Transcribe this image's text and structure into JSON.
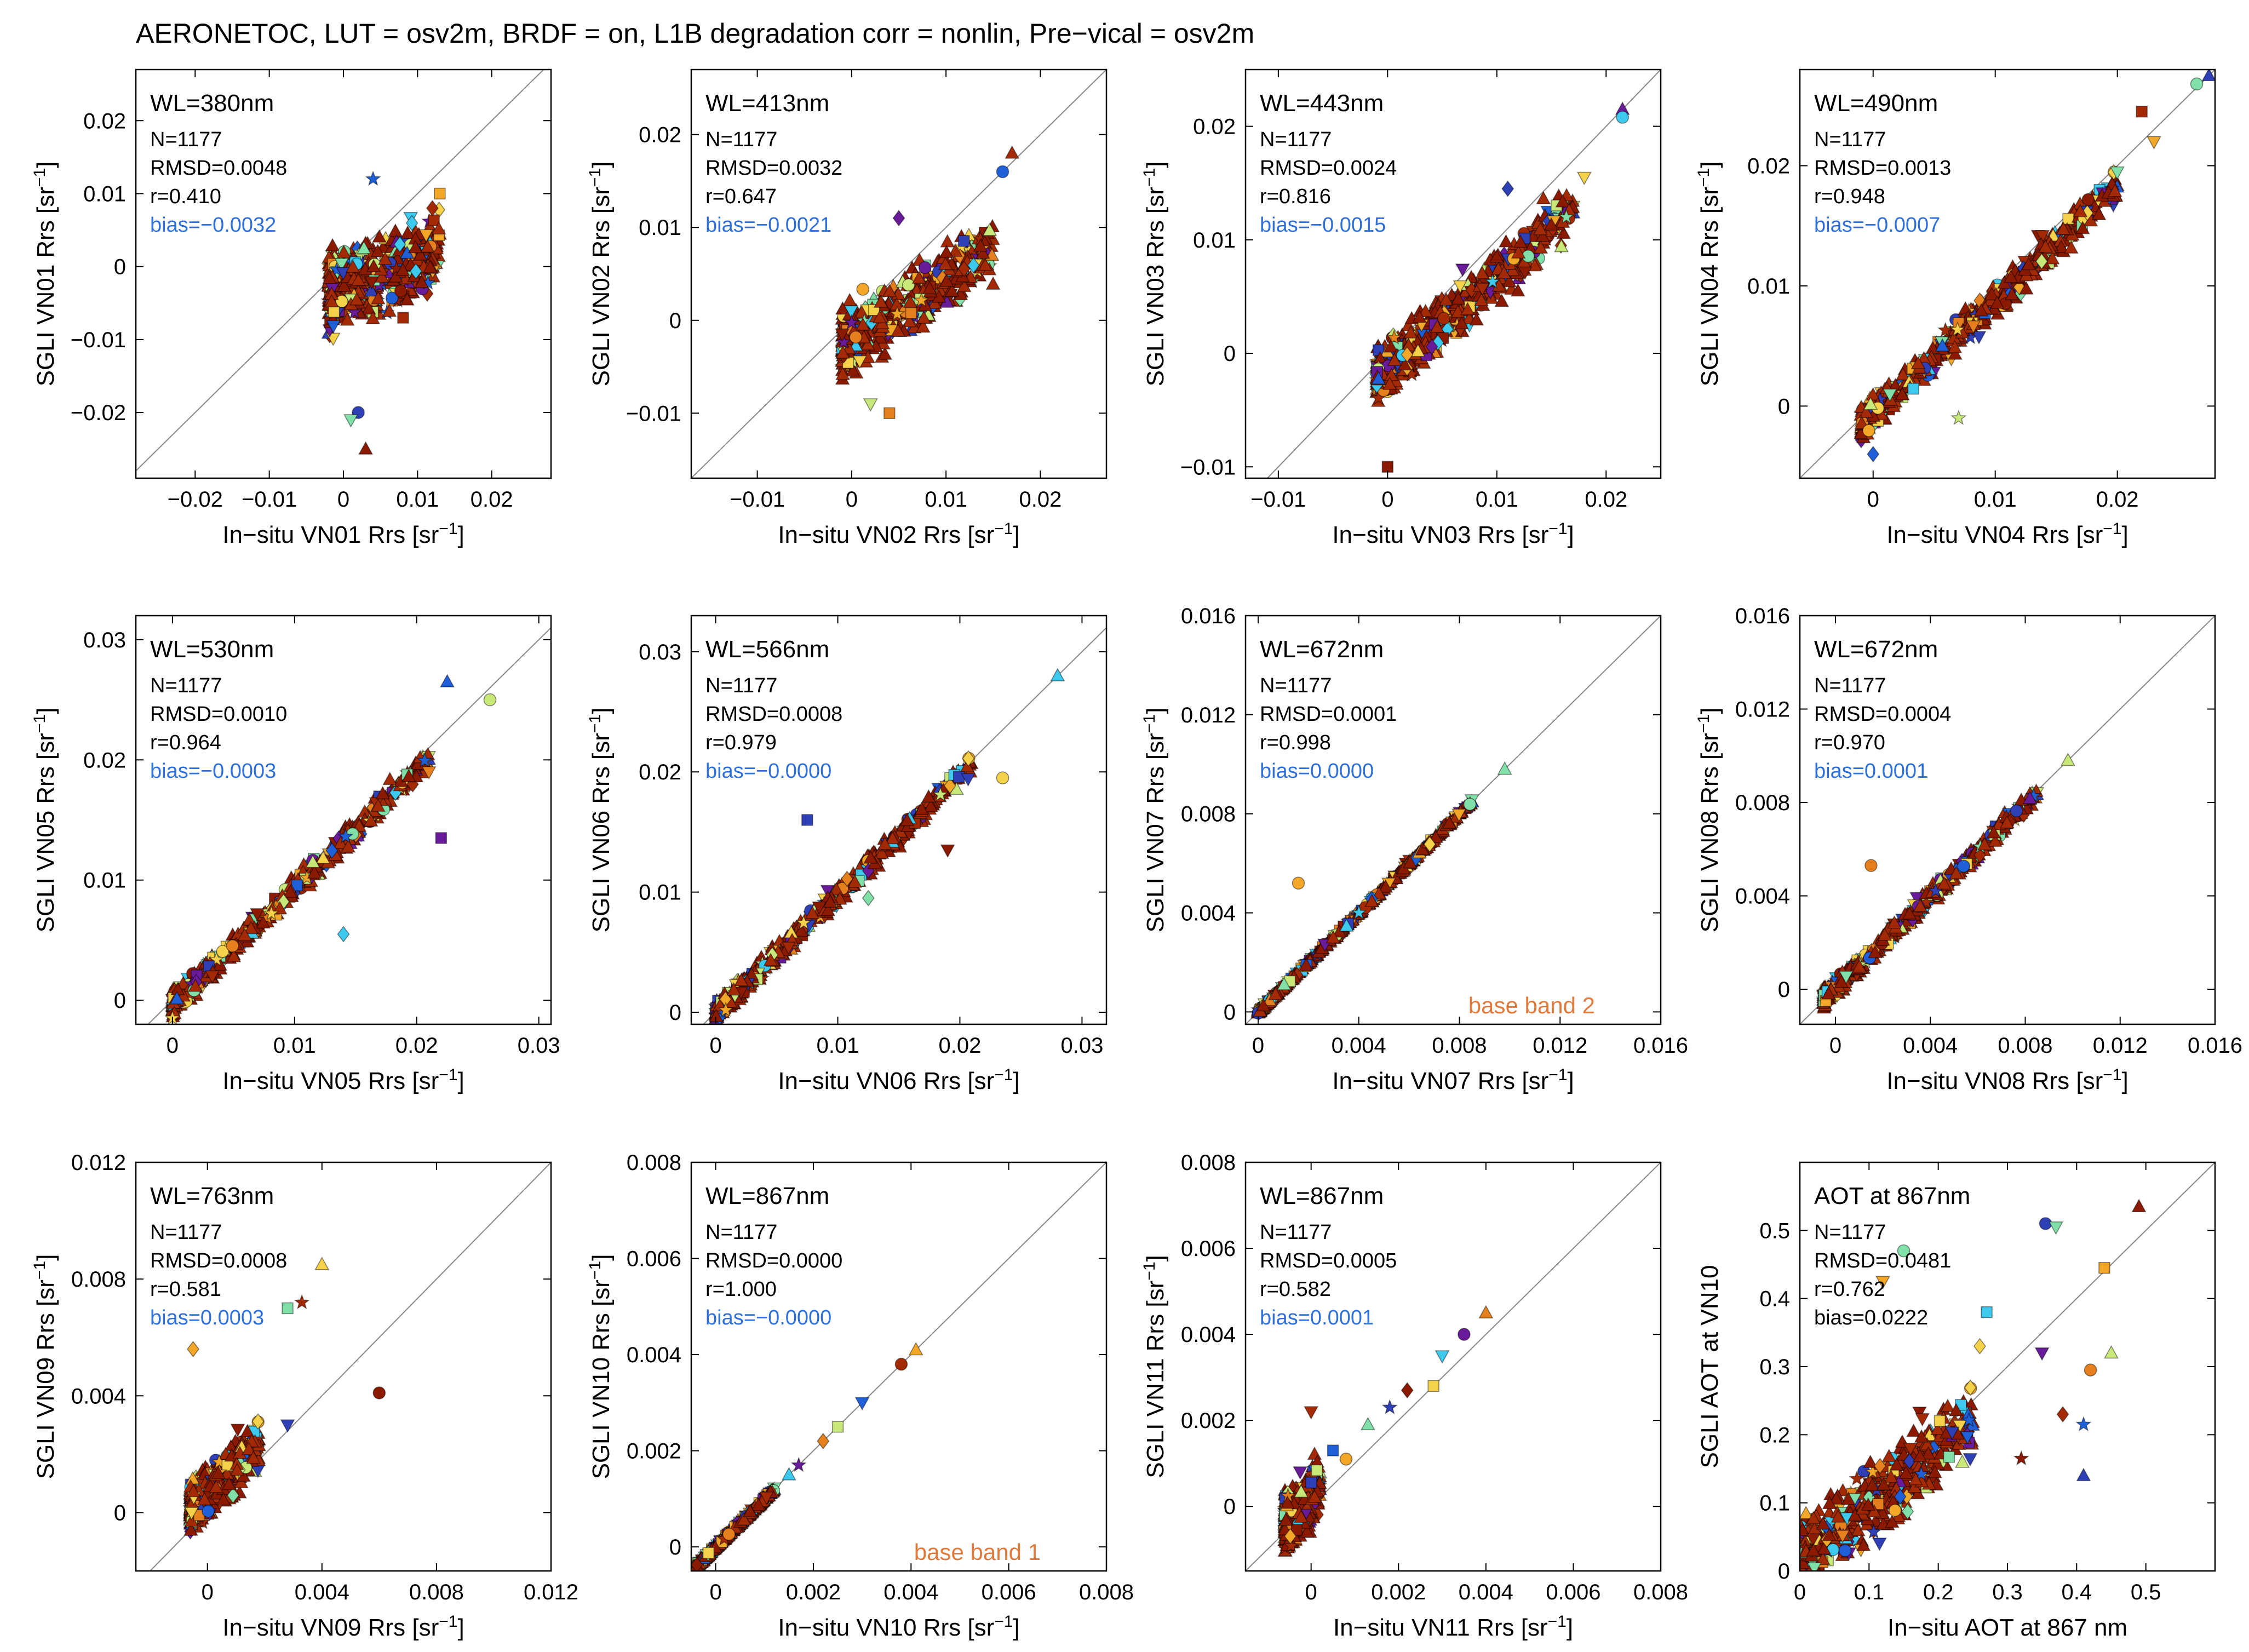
{
  "title": "AERONETOC, LUT = osv2m, BRDF = on, L1B degradation corr = nonlin, Pre−vical = osv2m",
  "colors": {
    "stat_bias": "#2f6fd8",
    "base_band": "#e07a3c",
    "identity_line": "#888888",
    "marker_palette": [
      "#8b1a00",
      "#a32a05",
      "#6a1b9a",
      "#2f3fb5",
      "#1f5fd8",
      "#3ec9ee",
      "#80e0a8",
      "#c8e87a",
      "#f6d24a",
      "#f3a728",
      "#e6801e"
    ]
  },
  "chart_data": [
    {
      "type": "scatter",
      "label": "WL=380nm",
      "xlabel": "In−situ VN01 Rrs [sr⁻¹]",
      "ylabel": "SGLI VN01 Rrs [sr⁻¹]",
      "xlim": [
        -0.028,
        0.028
      ],
      "ylim": [
        -0.029,
        0.027
      ],
      "xticks": [
        -0.02,
        -0.01,
        0,
        0.01,
        0.02
      ],
      "xticklabels": [
        "−0.02",
        "−0.01",
        "0",
        "0.01",
        "0.02"
      ],
      "yticks": [
        -0.02,
        -0.01,
        0,
        0.01,
        0.02
      ],
      "yticklabels": [
        "−0.02",
        "−0.01",
        "0",
        "0.01",
        "0.02"
      ],
      "stats": [
        "N=1177",
        "RMSD=0.0048",
        "r=0.410"
      ],
      "bias": "bias=−0.0032",
      "cluster": {
        "x_range": [
          -0.002,
          0.013
        ],
        "center_y_intercept": -0.003,
        "slope": 0.4,
        "spread": 0.0048
      },
      "points": [
        [
          0.003,
          -0.025
        ],
        [
          0.002,
          -0.02
        ],
        [
          0.001,
          -0.021
        ],
        [
          0.013,
          0.01
        ],
        [
          0.012,
          0.008
        ],
        [
          0.004,
          0.012
        ]
      ]
    },
    {
      "type": "scatter",
      "label": "WL=413nm",
      "xlabel": "In−situ VN02 Rrs [sr⁻¹]",
      "ylabel": "SGLI VN02 Rrs [sr⁻¹]",
      "xlim": [
        -0.017,
        0.027
      ],
      "ylim": [
        -0.017,
        0.027
      ],
      "xticks": [
        -0.01,
        0,
        0.01,
        0.02
      ],
      "xticklabels": [
        "−0.01",
        "0",
        "0.01",
        "0.02"
      ],
      "yticks": [
        -0.01,
        0,
        0.01,
        0.02
      ],
      "yticklabels": [
        "−0.01",
        "0",
        "0.01",
        "0.02"
      ],
      "stats": [
        "N=1177",
        "RMSD=0.0032",
        "r=0.647"
      ],
      "bias": "bias=−0.0021",
      "cluster": {
        "x_range": [
          -0.001,
          0.015
        ],
        "center_y_intercept": -0.002,
        "slope": 0.65,
        "spread": 0.003
      },
      "points": [
        [
          0.017,
          0.018
        ],
        [
          0.016,
          0.016
        ],
        [
          0.002,
          -0.009
        ],
        [
          0.004,
          -0.01
        ],
        [
          0.005,
          0.011
        ]
      ]
    },
    {
      "type": "scatter",
      "label": "WL=443nm",
      "xlabel": "In−situ VN03 Rrs [sr⁻¹]",
      "ylabel": "SGLI VN03 Rrs [sr⁻¹]",
      "xlim": [
        -0.013,
        0.025
      ],
      "ylim": [
        -0.011,
        0.025
      ],
      "xticks": [
        -0.01,
        0,
        0.01,
        0.02
      ],
      "xticklabels": [
        "−0.01",
        "0",
        "0.01",
        "0.02"
      ],
      "yticks": [
        -0.01,
        0,
        0.01,
        0.02
      ],
      "yticklabels": [
        "−0.01",
        "0",
        "0.01",
        "0.02"
      ],
      "stats": [
        "N=1177",
        "RMSD=0.0024",
        "r=0.816"
      ],
      "bias": "bias=−0.0015",
      "cluster": {
        "x_range": [
          -0.001,
          0.017
        ],
        "center_y_intercept": -0.0012,
        "slope": 0.8,
        "spread": 0.0022
      },
      "points": [
        [
          0.0215,
          0.0215
        ],
        [
          0.0215,
          0.0208
        ],
        [
          0.018,
          0.0155
        ],
        [
          0.0,
          -0.01
        ],
        [
          0.011,
          0.0145
        ]
      ]
    },
    {
      "type": "scatter",
      "label": "WL=490nm",
      "xlabel": "In−situ VN04 Rrs [sr⁻¹]",
      "ylabel": "SGLI VN04 Rrs [sr⁻¹]",
      "xlim": [
        -0.006,
        0.028
      ],
      "ylim": [
        -0.006,
        0.028
      ],
      "xticks": [
        0,
        0.01,
        0.02
      ],
      "xticklabels": [
        "0",
        "0.01",
        "0.02"
      ],
      "yticks": [
        0,
        0.01,
        0.02
      ],
      "yticklabels": [
        "0",
        "0.01",
        "0.02"
      ],
      "stats": [
        "N=1177",
        "RMSD=0.0013",
        "r=0.948"
      ],
      "bias": "bias=−0.0007",
      "cluster": {
        "x_range": [
          -0.001,
          0.02
        ],
        "center_y_intercept": -0.0006,
        "slope": 0.95,
        "spread": 0.0013
      },
      "points": [
        [
          0.0275,
          0.0275
        ],
        [
          0.0265,
          0.0268
        ],
        [
          0.023,
          0.022
        ],
        [
          0.022,
          0.0245
        ],
        [
          0.0,
          -0.004
        ],
        [
          0.007,
          -0.001
        ]
      ]
    },
    {
      "type": "scatter",
      "label": "WL=530nm",
      "xlabel": "In−situ VN05 Rrs [sr⁻¹]",
      "ylabel": "SGLI VN05 Rrs [sr⁻¹]",
      "xlim": [
        -0.003,
        0.031
      ],
      "ylim": [
        -0.002,
        0.032
      ],
      "xticks": [
        0,
        0.01,
        0.02,
        0.03
      ],
      "xticklabels": [
        "0",
        "0.01",
        "0.02",
        "0.03"
      ],
      "yticks": [
        0,
        0.01,
        0.02,
        0.03
      ],
      "yticklabels": [
        "0",
        "0.01",
        "0.02",
        "0.03"
      ],
      "stats": [
        "N=1177",
        "RMSD=0.0010",
        "r=0.964"
      ],
      "bias": "bias=−0.0003",
      "cluster": {
        "x_range": [
          0.0,
          0.021
        ],
        "center_y_intercept": -0.0003,
        "slope": 0.97,
        "spread": 0.0009
      },
      "points": [
        [
          0.0225,
          0.0265
        ],
        [
          0.026,
          0.025
        ],
        [
          0.021,
          0.019
        ],
        [
          0.022,
          0.0135
        ],
        [
          0.014,
          0.0055
        ],
        [
          0.0,
          -0.0015
        ]
      ]
    },
    {
      "type": "scatter",
      "label": "WL=566nm",
      "xlabel": "In−situ VN06 Rrs [sr⁻¹]",
      "ylabel": "SGLI VN06 Rrs [sr⁻¹]",
      "xlim": [
        -0.002,
        0.032
      ],
      "ylim": [
        -0.001,
        0.033
      ],
      "xticks": [
        0,
        0.01,
        0.02,
        0.03
      ],
      "xticklabels": [
        "0",
        "0.01",
        "0.02",
        "0.03"
      ],
      "yticks": [
        0,
        0.01,
        0.02,
        0.03
      ],
      "yticklabels": [
        "0",
        "0.01",
        "0.02",
        "0.03"
      ],
      "stats": [
        "N=1177",
        "RMSD=0.0008",
        "r=0.979"
      ],
      "bias": "bias=−0.0000",
      "cluster": {
        "x_range": [
          0.0,
          0.021
        ],
        "center_y_intercept": 0.0,
        "slope": 0.98,
        "spread": 0.0008
      },
      "points": [
        [
          0.028,
          0.028
        ],
        [
          0.0235,
          0.0195
        ],
        [
          0.019,
          0.0135
        ],
        [
          0.0075,
          0.016
        ],
        [
          0.0125,
          0.0095
        ]
      ]
    },
    {
      "type": "scatter",
      "label": "WL=672nm",
      "xlabel": "In−situ VN07 Rrs [sr⁻¹]",
      "ylabel": "SGLI VN07 Rrs [sr⁻¹]",
      "xlim": [
        -0.0005,
        0.016
      ],
      "ylim": [
        -0.0005,
        0.016
      ],
      "xticks": [
        0,
        0.004,
        0.008,
        0.012,
        0.016
      ],
      "xticklabels": [
        "0",
        "0.004",
        "0.008",
        "0.012",
        "0.016"
      ],
      "yticks": [
        0,
        0.004,
        0.008,
        0.012,
        0.016
      ],
      "yticklabels": [
        "0",
        "0.004",
        "0.008",
        "0.012",
        "0.016"
      ],
      "stats": [
        "N=1177",
        "RMSD=0.0001",
        "r=0.998"
      ],
      "bias": "bias=0.0000",
      "annotation": "base band 2",
      "cluster": {
        "x_range": [
          0.0,
          0.0085
        ],
        "center_y_intercept": 0.0,
        "slope": 1.0,
        "spread": 8e-05
      },
      "points": [
        [
          0.0098,
          0.0098
        ],
        [
          0.0016,
          0.0052
        ]
      ]
    },
    {
      "type": "scatter",
      "label": "WL=672nm",
      "xlabel": "In−situ VN08 Rrs [sr⁻¹]",
      "ylabel": "SGLI VN08 Rrs [sr⁻¹]",
      "xlim": [
        -0.0015,
        0.016
      ],
      "ylim": [
        -0.0015,
        0.016
      ],
      "xticks": [
        0,
        0.004,
        0.008,
        0.012,
        0.016
      ],
      "xticklabels": [
        "0",
        "0.004",
        "0.008",
        "0.012",
        "0.016"
      ],
      "yticks": [
        0,
        0.004,
        0.008,
        0.012,
        0.016
      ],
      "yticklabels": [
        "0",
        "0.004",
        "0.008",
        "0.012",
        "0.016"
      ],
      "stats": [
        "N=1177",
        "RMSD=0.0004",
        "r=0.970"
      ],
      "bias": "bias=0.0001",
      "cluster": {
        "x_range": [
          -0.0005,
          0.0085
        ],
        "center_y_intercept": 0.0001,
        "slope": 0.97,
        "spread": 0.00035
      },
      "points": [
        [
          0.0098,
          0.0098
        ],
        [
          0.0015,
          0.0053
        ]
      ]
    },
    {
      "type": "scatter",
      "label": "WL=763nm",
      "xlabel": "In−situ VN09 Rrs [sr⁻¹]",
      "ylabel": "SGLI VN09 Rrs [sr⁻¹]",
      "xlim": [
        -0.0025,
        0.012
      ],
      "ylim": [
        -0.002,
        0.012
      ],
      "xticks": [
        0,
        0.004,
        0.008,
        0.012
      ],
      "xticklabels": [
        "0",
        "0.004",
        "0.008",
        "0.012"
      ],
      "yticks": [
        0,
        0.004,
        0.008,
        0.012
      ],
      "yticklabels": [
        "0",
        "0.004",
        "0.008",
        "0.012"
      ],
      "stats": [
        "N=1177",
        "RMSD=0.0008",
        "r=0.581"
      ],
      "bias": "bias=0.0003",
      "cluster": {
        "x_range": [
          -0.0006,
          0.0018
        ],
        "center_y_intercept": 0.0007,
        "slope": 0.9,
        "spread": 0.0008
      },
      "points": [
        [
          0.004,
          0.0085
        ],
        [
          0.006,
          0.0041
        ],
        [
          0.0028,
          0.003
        ],
        [
          0.0028,
          0.007
        ],
        [
          -0.0005,
          0.0056
        ],
        [
          0.0033,
          0.0072
        ]
      ]
    },
    {
      "type": "scatter",
      "label": "WL=867nm",
      "xlabel": "In−situ VN10 Rrs [sr⁻¹]",
      "ylabel": "SGLI VN10 Rrs [sr⁻¹]",
      "xlim": [
        -0.0005,
        0.008
      ],
      "ylim": [
        -0.0005,
        0.008
      ],
      "xticks": [
        0,
        0.002,
        0.004,
        0.006,
        0.008
      ],
      "xticklabels": [
        "0",
        "0.002",
        "0.004",
        "0.006",
        "0.008"
      ],
      "yticks": [
        0,
        0.002,
        0.004,
        0.006,
        0.008
      ],
      "yticklabels": [
        "0",
        "0.002",
        "0.004",
        "0.006",
        "0.008"
      ],
      "stats": [
        "N=1177",
        "RMSD=0.0000",
        "r=1.000"
      ],
      "bias": "bias=−0.0000",
      "annotation": "base band 1",
      "cluster": {
        "x_range": [
          -0.0004,
          0.0012
        ],
        "center_y_intercept": 0.0,
        "slope": 1.0,
        "spread": 3e-05
      },
      "points": [
        [
          0.0041,
          0.0041
        ],
        [
          0.0038,
          0.0038
        ],
        [
          0.003,
          0.003
        ],
        [
          0.0025,
          0.0025
        ],
        [
          0.0022,
          0.0022
        ],
        [
          0.0017,
          0.0017
        ],
        [
          0.0015,
          0.0015
        ]
      ]
    },
    {
      "type": "scatter",
      "label": "WL=867nm",
      "xlabel": "In−situ VN11 Rrs [sr⁻¹]",
      "ylabel": "SGLI VN11 Rrs [sr⁻¹]",
      "xlim": [
        -0.0015,
        0.008
      ],
      "ylim": [
        -0.0015,
        0.008
      ],
      "xticks": [
        0,
        0.002,
        0.004,
        0.006,
        0.008
      ],
      "xticklabels": [
        "0",
        "0.002",
        "0.004",
        "0.006",
        "0.008"
      ],
      "yticks": [
        0,
        0.002,
        0.004,
        0.006,
        0.008
      ],
      "yticklabels": [
        "0",
        "0.002",
        "0.004",
        "0.006",
        "0.008"
      ],
      "stats": [
        "N=1177",
        "RMSD=0.0005",
        "r=0.582"
      ],
      "bias": "bias=0.0001",
      "cluster": {
        "x_range": [
          -0.0006,
          0.0002
        ],
        "center_y_intercept": 0.0002,
        "slope": 1.0,
        "spread": 0.0006
      },
      "points": [
        [
          0.004,
          0.0045
        ],
        [
          0.0035,
          0.004
        ],
        [
          0.003,
          0.0035
        ],
        [
          0.0028,
          0.0028
        ],
        [
          0.0022,
          0.0027
        ],
        [
          0.0018,
          0.0023
        ],
        [
          0.0013,
          0.0019
        ],
        [
          0.0008,
          0.0011
        ],
        [
          0.0,
          0.0022
        ],
        [
          0.0005,
          0.0013
        ]
      ]
    },
    {
      "type": "scatter",
      "label": "AOT at  867nm",
      "xlabel": "In−situ AOT at 867 nm",
      "ylabel": "SGLI AOT at VN10",
      "xlim": [
        0,
        0.6
      ],
      "ylim": [
        0,
        0.6
      ],
      "xticks": [
        0,
        0.1,
        0.2,
        0.3,
        0.4,
        0.5
      ],
      "xticklabels": [
        "0",
        "0.1",
        "0.2",
        "0.3",
        "0.4",
        "0.5"
      ],
      "yticks": [
        0.1,
        0.2,
        0.3,
        0.4,
        0.5
      ],
      "yticklabels": [
        "0.1",
        "0.2",
        "0.3",
        "0.4",
        "0.5"
      ],
      "origin_label": "0",
      "stats": [
        "N=1177",
        "RMSD=0.0481",
        "r=0.762"
      ],
      "bias": "bias=0.0222",
      "bias_color": "#000000",
      "cluster": {
        "x_range": [
          0.0,
          0.25
        ],
        "center_y_intercept": 0.02,
        "slope": 0.8,
        "spread": 0.05
      },
      "points": [
        [
          0.49,
          0.535
        ],
        [
          0.355,
          0.51
        ],
        [
          0.37,
          0.505
        ],
        [
          0.44,
          0.445
        ],
        [
          0.38,
          0.23
        ],
        [
          0.41,
          0.215
        ],
        [
          0.45,
          0.32
        ],
        [
          0.42,
          0.295
        ],
        [
          0.35,
          0.32
        ],
        [
          0.27,
          0.38
        ],
        [
          0.26,
          0.33
        ],
        [
          0.32,
          0.165
        ],
        [
          0.41,
          0.14
        ],
        [
          0.15,
          0.47
        ],
        [
          0.12,
          0.425
        ]
      ]
    }
  ]
}
